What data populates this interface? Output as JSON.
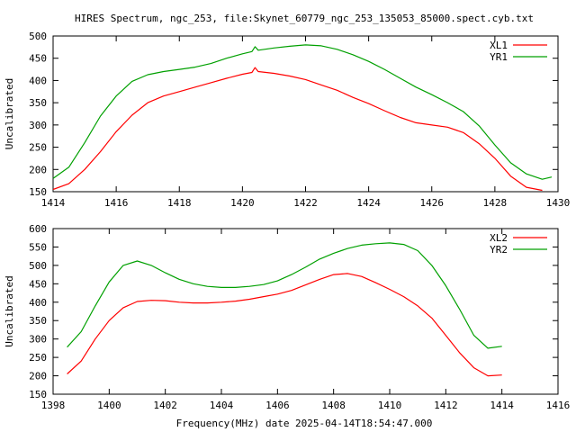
{
  "chart_data": [
    {
      "type": "line",
      "title": "HIRES Spectrum, ngc_253, file:Skynet_60779_ngc_253_135053_85000.spect.cyb.txt",
      "ylabel": "Uncalibrated",
      "xlabel": "",
      "xlim": [
        1414,
        1430
      ],
      "ylim": [
        150,
        500
      ],
      "xticks": [
        1414,
        1416,
        1418,
        1420,
        1422,
        1424,
        1426,
        1428,
        1430
      ],
      "yticks": [
        150,
        200,
        250,
        300,
        350,
        400,
        450,
        500
      ],
      "legend_position": "top-right",
      "series": [
        {
          "name": "XL1",
          "color": "#ff0000",
          "points": [
            [
              1414.0,
              155
            ],
            [
              1414.5,
              168
            ],
            [
              1415.0,
              200
            ],
            [
              1415.5,
              240
            ],
            [
              1416.0,
              285
            ],
            [
              1416.5,
              322
            ],
            [
              1417.0,
              350
            ],
            [
              1417.5,
              365
            ],
            [
              1418.0,
              375
            ],
            [
              1418.5,
              385
            ],
            [
              1419.0,
              395
            ],
            [
              1419.5,
              405
            ],
            [
              1420.0,
              414
            ],
            [
              1420.3,
              418
            ],
            [
              1420.4,
              429
            ],
            [
              1420.5,
              420
            ],
            [
              1421.0,
              416
            ],
            [
              1421.5,
              410
            ],
            [
              1422.0,
              402
            ],
            [
              1422.5,
              390
            ],
            [
              1423.0,
              378
            ],
            [
              1423.5,
              362
            ],
            [
              1424.0,
              348
            ],
            [
              1424.5,
              332
            ],
            [
              1425.0,
              317
            ],
            [
              1425.5,
              305
            ],
            [
              1426.0,
              300
            ],
            [
              1426.5,
              295
            ],
            [
              1427.0,
              283
            ],
            [
              1427.5,
              258
            ],
            [
              1428.0,
              225
            ],
            [
              1428.5,
              185
            ],
            [
              1429.0,
              160
            ],
            [
              1429.5,
              153
            ]
          ]
        },
        {
          "name": "YR1",
          "color": "#00a000",
          "points": [
            [
              1414.0,
              180
            ],
            [
              1414.5,
              205
            ],
            [
              1415.0,
              260
            ],
            [
              1415.5,
              320
            ],
            [
              1416.0,
              365
            ],
            [
              1416.5,
              398
            ],
            [
              1417.0,
              413
            ],
            [
              1417.5,
              420
            ],
            [
              1418.0,
              425
            ],
            [
              1418.5,
              430
            ],
            [
              1419.0,
              438
            ],
            [
              1419.5,
              450
            ],
            [
              1420.0,
              460
            ],
            [
              1420.3,
              465
            ],
            [
              1420.4,
              476
            ],
            [
              1420.5,
              468
            ],
            [
              1421.0,
              473
            ],
            [
              1421.5,
              477
            ],
            [
              1422.0,
              480
            ],
            [
              1422.5,
              478
            ],
            [
              1423.0,
              470
            ],
            [
              1423.5,
              458
            ],
            [
              1424.0,
              443
            ],
            [
              1424.5,
              425
            ],
            [
              1425.0,
              405
            ],
            [
              1425.5,
              385
            ],
            [
              1426.0,
              368
            ],
            [
              1426.5,
              350
            ],
            [
              1427.0,
              330
            ],
            [
              1427.5,
              298
            ],
            [
              1428.0,
              255
            ],
            [
              1428.5,
              215
            ],
            [
              1429.0,
              190
            ],
            [
              1429.5,
              178
            ],
            [
              1429.8,
              183
            ]
          ]
        }
      ]
    },
    {
      "type": "line",
      "title": "",
      "ylabel": "Uncalibrated",
      "xlabel": "Frequency(MHz) date 2025-04-14T18:54:47.000",
      "xlim": [
        1398,
        1416
      ],
      "ylim": [
        150,
        600
      ],
      "xticks": [
        1398,
        1400,
        1402,
        1404,
        1406,
        1408,
        1410,
        1412,
        1414,
        1416
      ],
      "yticks": [
        150,
        200,
        250,
        300,
        350,
        400,
        450,
        500,
        550,
        600
      ],
      "legend_position": "top-right",
      "series": [
        {
          "name": "XL2",
          "color": "#ff0000",
          "points": [
            [
              1398.5,
              205
            ],
            [
              1399.0,
              240
            ],
            [
              1399.5,
              300
            ],
            [
              1400.0,
              350
            ],
            [
              1400.5,
              385
            ],
            [
              1401.0,
              402
            ],
            [
              1401.5,
              405
            ],
            [
              1402.0,
              404
            ],
            [
              1402.5,
              400
            ],
            [
              1403.0,
              398
            ],
            [
              1403.5,
              398
            ],
            [
              1404.0,
              400
            ],
            [
              1404.5,
              403
            ],
            [
              1405.0,
              408
            ],
            [
              1405.5,
              415
            ],
            [
              1406.0,
              422
            ],
            [
              1406.5,
              432
            ],
            [
              1407.0,
              447
            ],
            [
              1407.5,
              462
            ],
            [
              1408.0,
              475
            ],
            [
              1408.5,
              478
            ],
            [
              1409.0,
              470
            ],
            [
              1409.5,
              453
            ],
            [
              1410.0,
              435
            ],
            [
              1410.5,
              415
            ],
            [
              1411.0,
              390
            ],
            [
              1411.5,
              357
            ],
            [
              1412.0,
              310
            ],
            [
              1412.5,
              262
            ],
            [
              1413.0,
              222
            ],
            [
              1413.5,
              200
            ],
            [
              1414.0,
              202
            ]
          ]
        },
        {
          "name": "YR2",
          "color": "#00a000",
          "points": [
            [
              1398.5,
              278
            ],
            [
              1399.0,
              320
            ],
            [
              1399.5,
              390
            ],
            [
              1400.0,
              455
            ],
            [
              1400.5,
              500
            ],
            [
              1401.0,
              512
            ],
            [
              1401.5,
              500
            ],
            [
              1402.0,
              480
            ],
            [
              1402.5,
              462
            ],
            [
              1403.0,
              450
            ],
            [
              1403.5,
              443
            ],
            [
              1404.0,
              440
            ],
            [
              1404.5,
              440
            ],
            [
              1405.0,
              443
            ],
            [
              1405.5,
              448
            ],
            [
              1406.0,
              458
            ],
            [
              1406.5,
              475
            ],
            [
              1407.0,
              495
            ],
            [
              1407.5,
              517
            ],
            [
              1408.0,
              533
            ],
            [
              1408.5,
              546
            ],
            [
              1409.0,
              555
            ],
            [
              1409.5,
              559
            ],
            [
              1410.0,
              561
            ],
            [
              1410.5,
              557
            ],
            [
              1411.0,
              540
            ],
            [
              1411.5,
              500
            ],
            [
              1412.0,
              445
            ],
            [
              1412.5,
              380
            ],
            [
              1413.0,
              310
            ],
            [
              1413.5,
              275
            ],
            [
              1414.0,
              280
            ]
          ]
        }
      ]
    }
  ]
}
